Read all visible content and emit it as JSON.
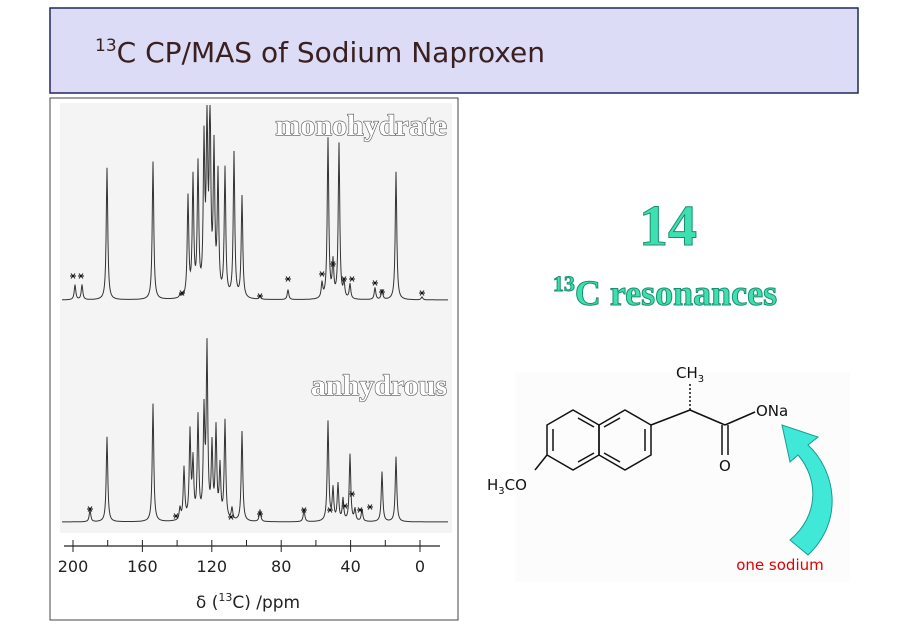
{
  "header": {
    "title_sup": "13",
    "title": "C CP/MAS of Sodium Naproxen"
  },
  "spectrum": {
    "labels": [
      "monohydrate",
      "anhydrous"
    ],
    "axis": {
      "ticks": [
        200,
        160,
        120,
        80,
        40,
        0
      ],
      "label_pre": "δ (",
      "label_sup": "13",
      "label_post": "C) /ppm"
    }
  },
  "summary": {
    "count": "14",
    "resonances_sup": "13",
    "resonances": "C resonances"
  },
  "molecule": {
    "ch3": "CH",
    "ch3_sub": "3",
    "ona": "ONa",
    "o": "O",
    "h3co_pre": "H",
    "h3co_sub": "3",
    "h3co_post": "CO",
    "note": "one sodium"
  }
}
